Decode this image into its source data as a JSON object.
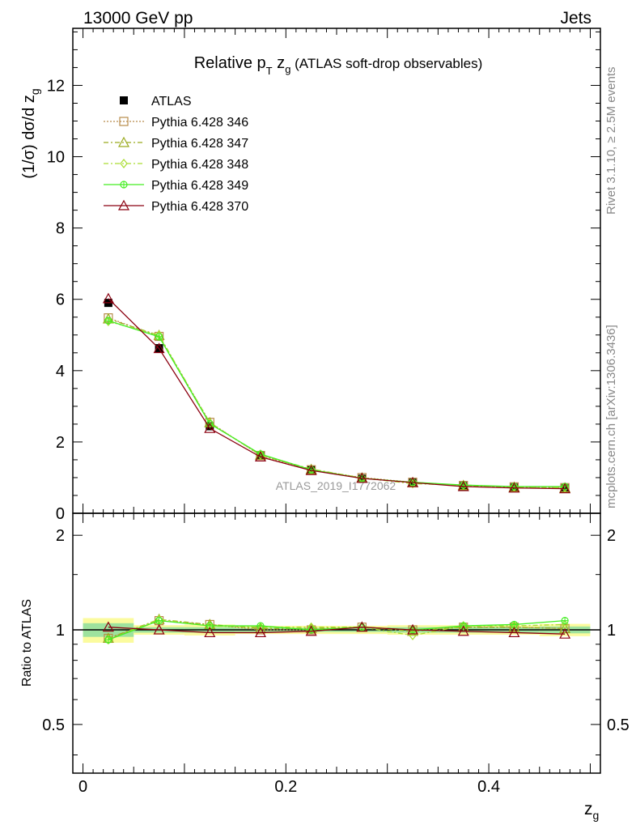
{
  "header": {
    "left": "13000 GeV pp",
    "right": "Jets"
  },
  "side_labels": {
    "rivet": "Rivet 3.1.10, ≥ 2.5M events",
    "mcplots": "mcplots.cern.ch [arXiv:1306.3436]"
  },
  "chart_data": [
    {
      "type": "scatter",
      "title_parts": {
        "main": "Relative p",
        "sub_T": "T",
        "mid": " z",
        "sub_g": "g",
        "tail": " (ATLAS soft-drop observables)"
      },
      "ylabel": "(1/σ) dσ/d z",
      "ylabel_sub": "g",
      "ylim": [
        0,
        13.6
      ],
      "xlim": [
        -0.01,
        0.51
      ],
      "yticks": [
        "0",
        "2",
        "4",
        "6",
        "8",
        "10",
        "12"
      ],
      "ytick_values": [
        0,
        2,
        4,
        6,
        8,
        10,
        12
      ],
      "watermark": "ATLAS_2019_I1772062",
      "x": [
        0.025,
        0.075,
        0.125,
        0.175,
        0.225,
        0.275,
        0.325,
        0.375,
        0.425,
        0.475
      ],
      "series": [
        {
          "name": "ATLAS",
          "color": "#000000",
          "marker": "filled-square",
          "line": "none",
          "values": [
            5.9,
            4.63,
            2.44,
            1.62,
            1.22,
            0.97,
            0.86,
            0.76,
            0.72,
            0.7
          ]
        },
        {
          "name": "Pythia 6.428 346",
          "color": "#b88b4a",
          "marker": "open-square",
          "line": "dotted",
          "values": [
            5.48,
            4.96,
            2.55,
            1.62,
            1.22,
            1.0,
            0.87,
            0.78,
            0.74,
            0.72
          ]
        },
        {
          "name": "Pythia 6.428 347",
          "color": "#9aaa1e",
          "marker": "open-triangle",
          "line": "dashdot",
          "values": [
            5.45,
            4.99,
            2.54,
            1.63,
            1.23,
            0.99,
            0.86,
            0.78,
            0.73,
            0.71
          ]
        },
        {
          "name": "Pythia 6.428 348",
          "color": "#aadd33",
          "marker": "open-diamond",
          "line": "dashdot",
          "values": [
            5.38,
            5.0,
            2.53,
            1.64,
            1.24,
            0.99,
            0.83,
            0.79,
            0.74,
            0.72
          ]
        },
        {
          "name": "Pythia 6.428 349",
          "color": "#44ee22",
          "marker": "open-circle-cross",
          "line": "solid",
          "values": [
            5.4,
            4.95,
            2.51,
            1.66,
            1.22,
            0.98,
            0.87,
            0.79,
            0.75,
            0.75
          ]
        },
        {
          "name": "Pythia 6.428 370",
          "color": "#8b0010",
          "marker": "open-triangle",
          "line": "solid",
          "values": [
            6.02,
            4.62,
            2.38,
            1.58,
            1.2,
            0.98,
            0.86,
            0.75,
            0.71,
            0.69
          ]
        }
      ]
    },
    {
      "type": "scatter",
      "ylabel": "Ratio to ATLAS",
      "xlabel": "z",
      "xlabel_sub": "g",
      "ylim": [
        0.35,
        2.35
      ],
      "yscale": "log",
      "yticks": [
        "0.5",
        "1",
        "2"
      ],
      "ytick_values": [
        0.5,
        1,
        2
      ],
      "xticks": [
        "0",
        "0.2",
        "0.4"
      ],
      "xtick_values": [
        0,
        0.2,
        0.4
      ],
      "band_inner_color": "#9ee29e",
      "band_outer_color": "#fbfb9e",
      "band_inner": [
        0.05,
        0.02,
        0.02,
        0.015,
        0.015,
        0.015,
        0.02,
        0.02,
        0.02,
        0.025
      ],
      "band_outer": [
        0.09,
        0.035,
        0.04,
        0.03,
        0.03,
        0.03,
        0.035,
        0.035,
        0.035,
        0.045
      ],
      "x": [
        0.025,
        0.075,
        0.125,
        0.175,
        0.225,
        0.275,
        0.325,
        0.375,
        0.425,
        0.475
      ],
      "series": [
        {
          "name": "Pythia 6.428 346",
          "color": "#b88b4a",
          "marker": "open-square",
          "line": "dotted",
          "values": [
            0.94,
            1.07,
            1.04,
            1.0,
            1.0,
            1.02,
            1.0,
            1.02,
            1.02,
            1.01
          ]
        },
        {
          "name": "Pythia 6.428 347",
          "color": "#9aaa1e",
          "marker": "open-triangle",
          "line": "dashdot",
          "values": [
            0.94,
            1.08,
            1.04,
            1.01,
            1.01,
            1.02,
            0.99,
            1.02,
            1.02,
            1.01
          ]
        },
        {
          "name": "Pythia 6.428 348",
          "color": "#aadd33",
          "marker": "open-diamond",
          "line": "dashdot",
          "values": [
            0.93,
            1.08,
            1.03,
            1.02,
            1.02,
            1.02,
            0.96,
            1.03,
            1.03,
            1.04
          ]
        },
        {
          "name": "Pythia 6.428 349",
          "color": "#44ee22",
          "marker": "open-circle-cross",
          "line": "solid",
          "values": [
            0.93,
            1.07,
            1.03,
            1.03,
            1.0,
            1.02,
            1.0,
            1.03,
            1.04,
            1.07
          ]
        },
        {
          "name": "Pythia 6.428 370",
          "color": "#8b0010",
          "marker": "open-triangle",
          "line": "solid",
          "values": [
            1.02,
            1.0,
            0.98,
            0.98,
            0.99,
            1.02,
            1.0,
            0.99,
            0.98,
            0.97
          ]
        }
      ]
    }
  ]
}
